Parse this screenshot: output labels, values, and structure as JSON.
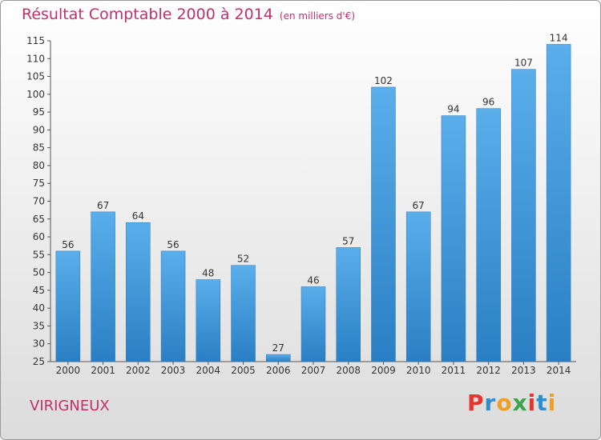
{
  "chart_data": {
    "type": "bar",
    "title": "Résultat Comptable 2000 à 2014",
    "subtitle": "(en milliers d'€)",
    "xlabel": "",
    "ylabel": "",
    "categories": [
      "2000",
      "2001",
      "2002",
      "2003",
      "2004",
      "2005",
      "2006",
      "2007",
      "2008",
      "2009",
      "2010",
      "2011",
      "2012",
      "2013",
      "2014"
    ],
    "values": [
      56,
      67,
      64,
      56,
      48,
      52,
      27,
      46,
      57,
      102,
      67,
      94,
      96,
      107,
      114
    ],
    "ylim": [
      25,
      115
    ],
    "yticks": [
      25,
      30,
      35,
      40,
      45,
      50,
      55,
      60,
      65,
      70,
      75,
      80,
      85,
      90,
      95,
      100,
      105,
      110,
      115
    ],
    "grid": false,
    "bar_color": "#4a9ee0"
  },
  "footer": {
    "commune": "VIRIGNEUX",
    "logo": "Proxiti",
    "logo_colors": [
      "#e8352b",
      "#2a8fd0",
      "#f0a020",
      "#3aa64a",
      "#e8352b",
      "#2a8fd0",
      "#f0a020"
    ]
  }
}
